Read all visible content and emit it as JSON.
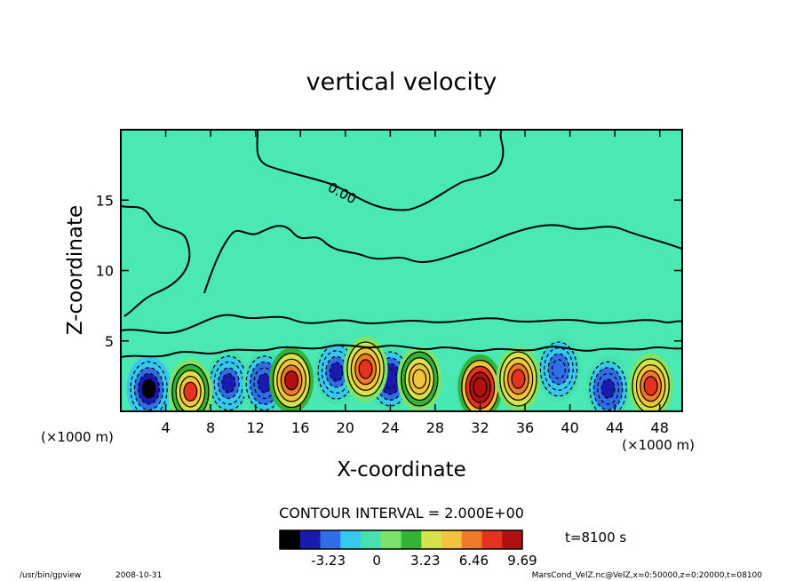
{
  "chart_data": {
    "type": "heatmap",
    "title": "vertical velocity",
    "xlabel": "X-coordinate",
    "ylabel": "Z-coordinate",
    "x_unit": "(×1000 m)",
    "x_unit_left": "(×1000 m)",
    "xlim": [
      0,
      50
    ],
    "ylim": [
      0,
      20
    ],
    "x_ticks": [
      "4",
      "8",
      "12",
      "16",
      "20",
      "24",
      "28",
      "32",
      "36",
      "40",
      "44",
      "48"
    ],
    "y_ticks": [
      "5",
      "10",
      "15"
    ],
    "contour_interval_label": "CONTOUR INTERVAL = 2.000E+00",
    "contour_label": "0.00",
    "colorbar": {
      "ticks": [
        "-3.23",
        "0",
        "3.23",
        "6.46",
        "9.69"
      ],
      "range": [
        -6.46,
        9.69
      ],
      "colors": [
        "#000000",
        "#1a1ab0",
        "#2f6ee8",
        "#37c8ef",
        "#45e2b0",
        "#7be36a",
        "#34b234",
        "#d6e24a",
        "#f2c23c",
        "#f07a2a",
        "#e83220",
        "#b01010"
      ]
    },
    "time_label": "t=8100 s",
    "updrafts": [
      {
        "x": 6.2,
        "z": 1.4,
        "peak": 7.0
      },
      {
        "x": 15.2,
        "z": 2.2,
        "peak": 8.5
      },
      {
        "x": 21.8,
        "z": 3.0,
        "peak": 8.0
      },
      {
        "x": 26.6,
        "z": 2.3,
        "peak": 5.5
      },
      {
        "x": 32.0,
        "z": 1.7,
        "peak": 12.0
      },
      {
        "x": 35.4,
        "z": 2.3,
        "peak": 8.0
      },
      {
        "x": 47.2,
        "z": 1.8,
        "peak": 8.0
      }
    ],
    "downdrafts": [
      {
        "x": 2.5,
        "z": 1.6,
        "peak": -5.5
      },
      {
        "x": 9.6,
        "z": 2.0,
        "peak": -4.0
      },
      {
        "x": 12.8,
        "z": 2.0,
        "peak": -4.5
      },
      {
        "x": 19.2,
        "z": 2.8,
        "peak": -4.0
      },
      {
        "x": 24.0,
        "z": 2.3,
        "peak": -5.0
      },
      {
        "x": 31.8,
        "z": 1.7,
        "peak": -4.0
      },
      {
        "x": 39.0,
        "z": 3.0,
        "peak": -3.5
      },
      {
        "x": 43.4,
        "z": 1.6,
        "peak": -4.5
      }
    ]
  },
  "footer": {
    "program": "/usr/bin/gpview",
    "date": "2008-10-31",
    "source": "MarsCond_VelZ.nc@VelZ,x=0:50000,z=0:20000,t=08100"
  }
}
